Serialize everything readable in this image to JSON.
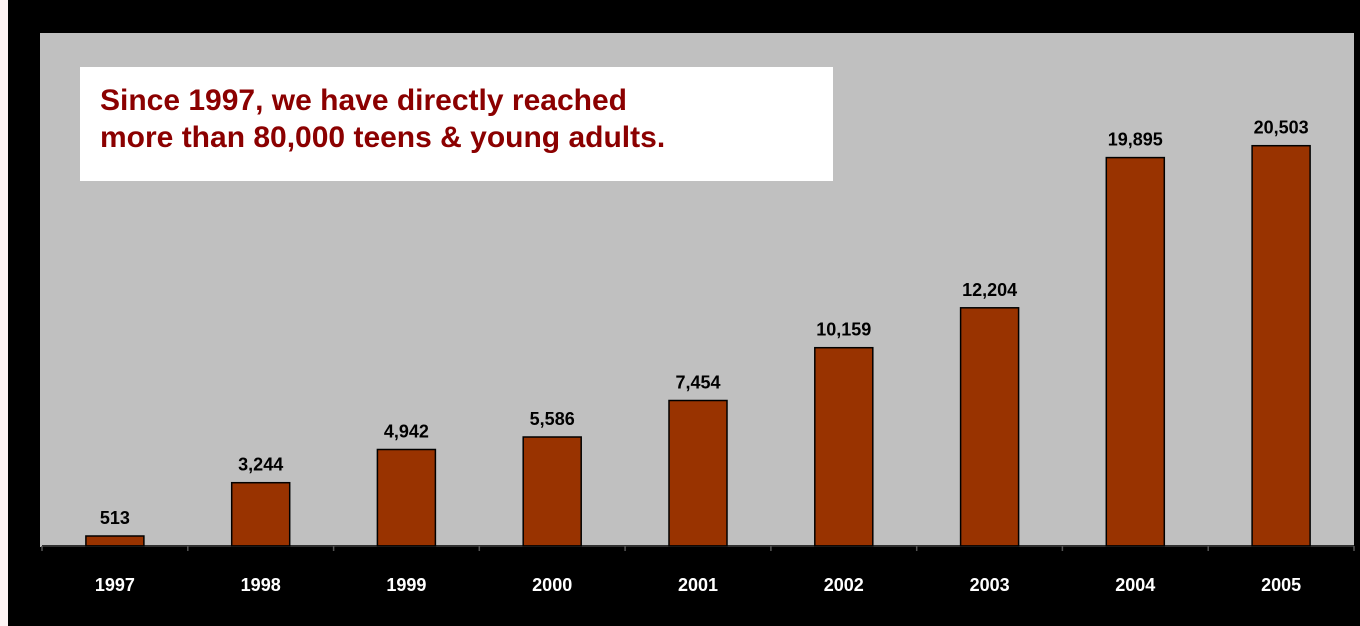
{
  "callout": {
    "line1": "Since 1997, we have directly reached",
    "line2": "more than 80,000 teens & young adults."
  },
  "colors": {
    "bar_fill": "#993300",
    "plot_background": "#c0c0c0",
    "outer_background": "#000000",
    "callout_text": "#8b0000",
    "category_label_text": "#ffffff"
  },
  "chart_data": {
    "type": "bar",
    "title": "",
    "xlabel": "",
    "ylabel": "",
    "categories": [
      "1997",
      "1998",
      "1999",
      "2000",
      "2001",
      "2002",
      "2003",
      "2004",
      "2005"
    ],
    "values": [
      513,
      3244,
      4942,
      5586,
      7454,
      10159,
      12204,
      19895,
      20503
    ],
    "value_labels": [
      "513",
      "3,244",
      "4,942",
      "5,586",
      "7,454",
      "10,159",
      "12,204",
      "19,895",
      "20,503"
    ],
    "ylim": [
      0,
      23000
    ],
    "grid": false,
    "legend": "none"
  }
}
